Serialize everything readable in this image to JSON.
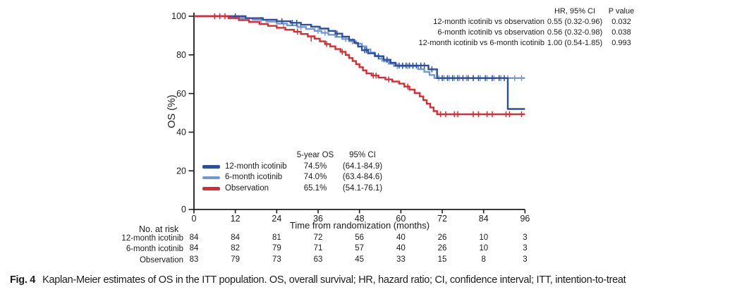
{
  "figure": {
    "caption_label": "Fig. 4",
    "caption_text": "Kaplan-Meier estimates of OS in the ITT population. OS, overall survival; HR, hazard ratio; CI, confidence interval; ITT, intention-to-treat"
  },
  "hr_table": {
    "col_hr": "HR, 95% CI",
    "col_p": "P value",
    "rows": [
      {
        "label": "12-month icotinib vs observation",
        "hr": "0.55 (0.32-0.96)",
        "p": "0.032"
      },
      {
        "label": "6-month icotinib vs observation",
        "hr": "0.56 (0.32-0.98)",
        "p": "0.038"
      },
      {
        "label": "12-month icotinib vs 6-month icotinib",
        "hr": "1.00 (0.54-1.85)",
        "p": "0.993"
      }
    ]
  },
  "legend_table": {
    "col_os": "5-year OS",
    "col_ci": "95% CI",
    "rows": [
      {
        "label": "12-month icotinib",
        "os": "74.5%",
        "ci": "(64.1-84.9)",
        "color": "#2B4F9E"
      },
      {
        "label": "6-month icotinib",
        "os": "74.0%",
        "ci": "(63.4-84.6)",
        "color": "#7398CE"
      },
      {
        "label": "Observation",
        "os": "65.1%",
        "ci": "(54.1-76.1)",
        "color": "#E02832"
      }
    ]
  },
  "risk_table": {
    "title": "No. at risk",
    "rows": [
      {
        "label": "12-month icotinib",
        "counts": [
          84,
          84,
          81,
          72,
          56,
          40,
          26,
          10,
          3
        ]
      },
      {
        "label": "6-month icotinib",
        "counts": [
          84,
          82,
          79,
          71,
          57,
          40,
          26,
          10,
          3
        ]
      },
      {
        "label": "Observation",
        "counts": [
          83,
          79,
          73,
          63,
          45,
          33,
          15,
          8,
          3
        ]
      }
    ]
  },
  "chart_data": {
    "type": "line",
    "subtype": "kaplan-meier-step",
    "title": "",
    "xlabel": "Time from randomization (months)",
    "ylabel": "OS (%)",
    "xlim": [
      0,
      96
    ],
    "ylim": [
      0,
      100
    ],
    "xticks": [
      0,
      12,
      24,
      36,
      48,
      60,
      72,
      84,
      96
    ],
    "yticks": [
      0,
      20,
      40,
      60,
      80,
      100
    ],
    "grid": false,
    "axis_color": "#1c1c1c",
    "series": [
      {
        "name": "6-month icotinib",
        "color": "#7398CE",
        "five_year_os": 74.0,
        "points": [
          [
            0,
            100
          ],
          [
            13,
            99
          ],
          [
            17,
            98.1
          ],
          [
            21,
            97.2
          ],
          [
            24,
            96.2
          ],
          [
            27,
            95.3
          ],
          [
            30,
            94.4
          ],
          [
            32.5,
            93.4
          ],
          [
            35,
            92.4
          ],
          [
            37,
            91.4
          ],
          [
            39,
            90.4
          ],
          [
            41,
            89.3
          ],
          [
            43,
            88.2
          ],
          [
            45,
            87
          ],
          [
            47,
            85.8
          ],
          [
            48.7,
            84.4
          ],
          [
            50,
            82.8
          ],
          [
            51.2,
            81.2
          ],
          [
            52.4,
            79.6
          ],
          [
            53.6,
            78
          ],
          [
            55,
            76.6
          ],
          [
            56.5,
            75.4
          ],
          [
            58,
            74.2
          ],
          [
            65,
            72.6
          ],
          [
            66.8,
            71.2
          ],
          [
            68.3,
            69.6
          ],
          [
            69.7,
            68
          ],
          [
            96,
            68
          ]
        ],
        "censors": [
          [
            14,
            99
          ],
          [
            19.5,
            98.1
          ],
          [
            26,
            95.3
          ],
          [
            31,
            94.4
          ],
          [
            36,
            92.4
          ],
          [
            38,
            91.4
          ],
          [
            44,
            88.2
          ],
          [
            46,
            87
          ],
          [
            54.5,
            78
          ],
          [
            59,
            74.2
          ],
          [
            60.5,
            74.2
          ],
          [
            62,
            74.2
          ],
          [
            63.5,
            74.2
          ],
          [
            71,
            68
          ],
          [
            72.5,
            68
          ],
          [
            74,
            68
          ],
          [
            75.5,
            68
          ],
          [
            77,
            68
          ],
          [
            79,
            68
          ],
          [
            81,
            68
          ],
          [
            83,
            68
          ],
          [
            85,
            68
          ],
          [
            87,
            68
          ],
          [
            89,
            68
          ],
          [
            91,
            68
          ],
          [
            93,
            68
          ],
          [
            95,
            68
          ]
        ]
      },
      {
        "name": "12-month icotinib",
        "color": "#2B4F9E",
        "five_year_os": 74.5,
        "points": [
          [
            0,
            100
          ],
          [
            15,
            99
          ],
          [
            20,
            98.2
          ],
          [
            24,
            97.4
          ],
          [
            28,
            96.6
          ],
          [
            31,
            95.6
          ],
          [
            34,
            94.6
          ],
          [
            36.5,
            93.6
          ],
          [
            39,
            92.4
          ],
          [
            41,
            91
          ],
          [
            43,
            89.4
          ],
          [
            45,
            87.8
          ],
          [
            46.5,
            86.2
          ],
          [
            47.6,
            84.3
          ],
          [
            48.7,
            82.4
          ],
          [
            50.5,
            80.8
          ],
          [
            52.5,
            79.3
          ],
          [
            55,
            77.5
          ],
          [
            57,
            75.9
          ],
          [
            58.5,
            74.5
          ],
          [
            68,
            72.5
          ],
          [
            70.5,
            68
          ],
          [
            91,
            52
          ],
          [
            96,
            52
          ]
        ],
        "censors": [
          [
            12,
            100
          ],
          [
            25.5,
            97.4
          ],
          [
            28.5,
            96.6
          ],
          [
            29.8,
            96.6
          ],
          [
            41.5,
            91
          ],
          [
            49.5,
            82.4
          ],
          [
            50,
            82.4
          ],
          [
            53.5,
            79.3
          ],
          [
            56,
            77.5
          ],
          [
            59.5,
            74.5
          ],
          [
            60.5,
            74.5
          ],
          [
            61.5,
            74.5
          ],
          [
            62.5,
            74.5
          ],
          [
            63.5,
            74.5
          ],
          [
            64.5,
            74.5
          ],
          [
            65.8,
            74.5
          ],
          [
            66.8,
            74.5
          ],
          [
            69,
            72.5
          ],
          [
            72,
            68
          ],
          [
            73.5,
            68
          ],
          [
            75,
            68
          ],
          [
            76.5,
            68
          ],
          [
            78,
            68
          ],
          [
            79.5,
            68
          ],
          [
            81,
            68
          ],
          [
            82.5,
            68
          ],
          [
            84.5,
            68
          ],
          [
            86.5,
            68
          ],
          [
            88.5,
            68
          ],
          [
            90,
            68
          ]
        ]
      },
      {
        "name": "Observation",
        "color": "#E02832",
        "five_year_os": 65.1,
        "points": [
          [
            0,
            100
          ],
          [
            10,
            99
          ],
          [
            13,
            98
          ],
          [
            16,
            97
          ],
          [
            19,
            96
          ],
          [
            21.5,
            95
          ],
          [
            24,
            94
          ],
          [
            26.5,
            93
          ],
          [
            29,
            92
          ],
          [
            31,
            90.8
          ],
          [
            33,
            89.6
          ],
          [
            35,
            88.4
          ],
          [
            36.5,
            87
          ],
          [
            38,
            85.6
          ],
          [
            39.5,
            84.4
          ],
          [
            41,
            83
          ],
          [
            42.5,
            81.6
          ],
          [
            44,
            80
          ],
          [
            45,
            78.4
          ],
          [
            46,
            76.8
          ],
          [
            47,
            75.2
          ],
          [
            48,
            73.6
          ],
          [
            49,
            72
          ],
          [
            50,
            70.4
          ],
          [
            51.5,
            69.3
          ],
          [
            53.5,
            68.3
          ],
          [
            55.5,
            67.3
          ],
          [
            57.5,
            66.2
          ],
          [
            59.5,
            65.1
          ],
          [
            61,
            63.6
          ],
          [
            62.5,
            62
          ],
          [
            64,
            60.3
          ],
          [
            65.5,
            58.5
          ],
          [
            66.5,
            56.6
          ],
          [
            67.5,
            54.7
          ],
          [
            68.5,
            52.8
          ],
          [
            69.5,
            50.9
          ],
          [
            70.5,
            49.3
          ],
          [
            96,
            49.3
          ]
        ],
        "censors": [
          [
            6,
            100
          ],
          [
            7.5,
            100
          ],
          [
            9,
            100
          ],
          [
            30,
            92
          ],
          [
            34,
            88.4
          ],
          [
            38.5,
            85.6
          ],
          [
            43,
            81.6
          ],
          [
            52,
            69.3
          ],
          [
            52.8,
            69.3
          ],
          [
            56.5,
            67.3
          ],
          [
            62,
            63.6
          ],
          [
            71.5,
            49.3
          ],
          [
            73,
            49.3
          ],
          [
            75.5,
            49.3
          ],
          [
            76.5,
            49.3
          ],
          [
            81,
            49.3
          ],
          [
            82.5,
            49.3
          ],
          [
            85,
            49.3
          ],
          [
            86.5,
            49.3
          ],
          [
            90.5,
            49.3
          ],
          [
            91.5,
            49.3
          ],
          [
            95,
            49.3
          ]
        ]
      }
    ]
  }
}
